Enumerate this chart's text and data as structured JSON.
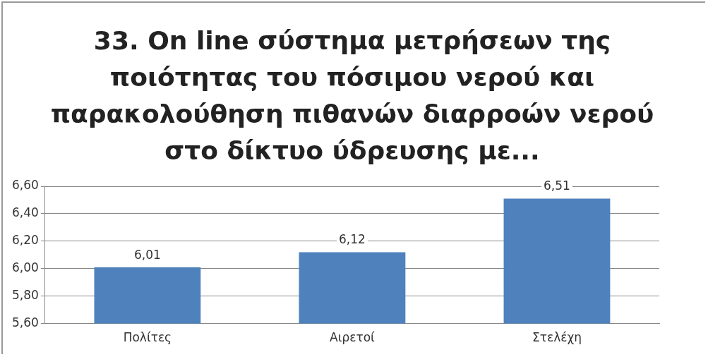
{
  "chart_data": {
    "type": "bar",
    "title": "33. On line σύστημα μετρήσεων της ποιότητας του πόσιμου νερού και παρακολούθηση πιθανών διαρροών νερού στο δίκτυο ύδρευσης με...",
    "categories": [
      "Πολίτες",
      "Αιρετοί",
      "Στελέχη"
    ],
    "values": [
      6.01,
      6.12,
      6.51
    ],
    "value_labels": [
      "6,01",
      "6,12",
      "6,51"
    ],
    "color": "#4f81bd",
    "ylim": [
      5.6,
      6.6
    ],
    "yticks": [
      {
        "value": 5.6,
        "label": "5,60"
      },
      {
        "value": 5.8,
        "label": "5,80"
      },
      {
        "value": 6.0,
        "label": "6,00"
      },
      {
        "value": 6.2,
        "label": "6,20"
      },
      {
        "value": 6.4,
        "label": "6,40"
      },
      {
        "value": 6.6,
        "label": "6,60"
      }
    ],
    "grid": "y",
    "legend": false
  }
}
